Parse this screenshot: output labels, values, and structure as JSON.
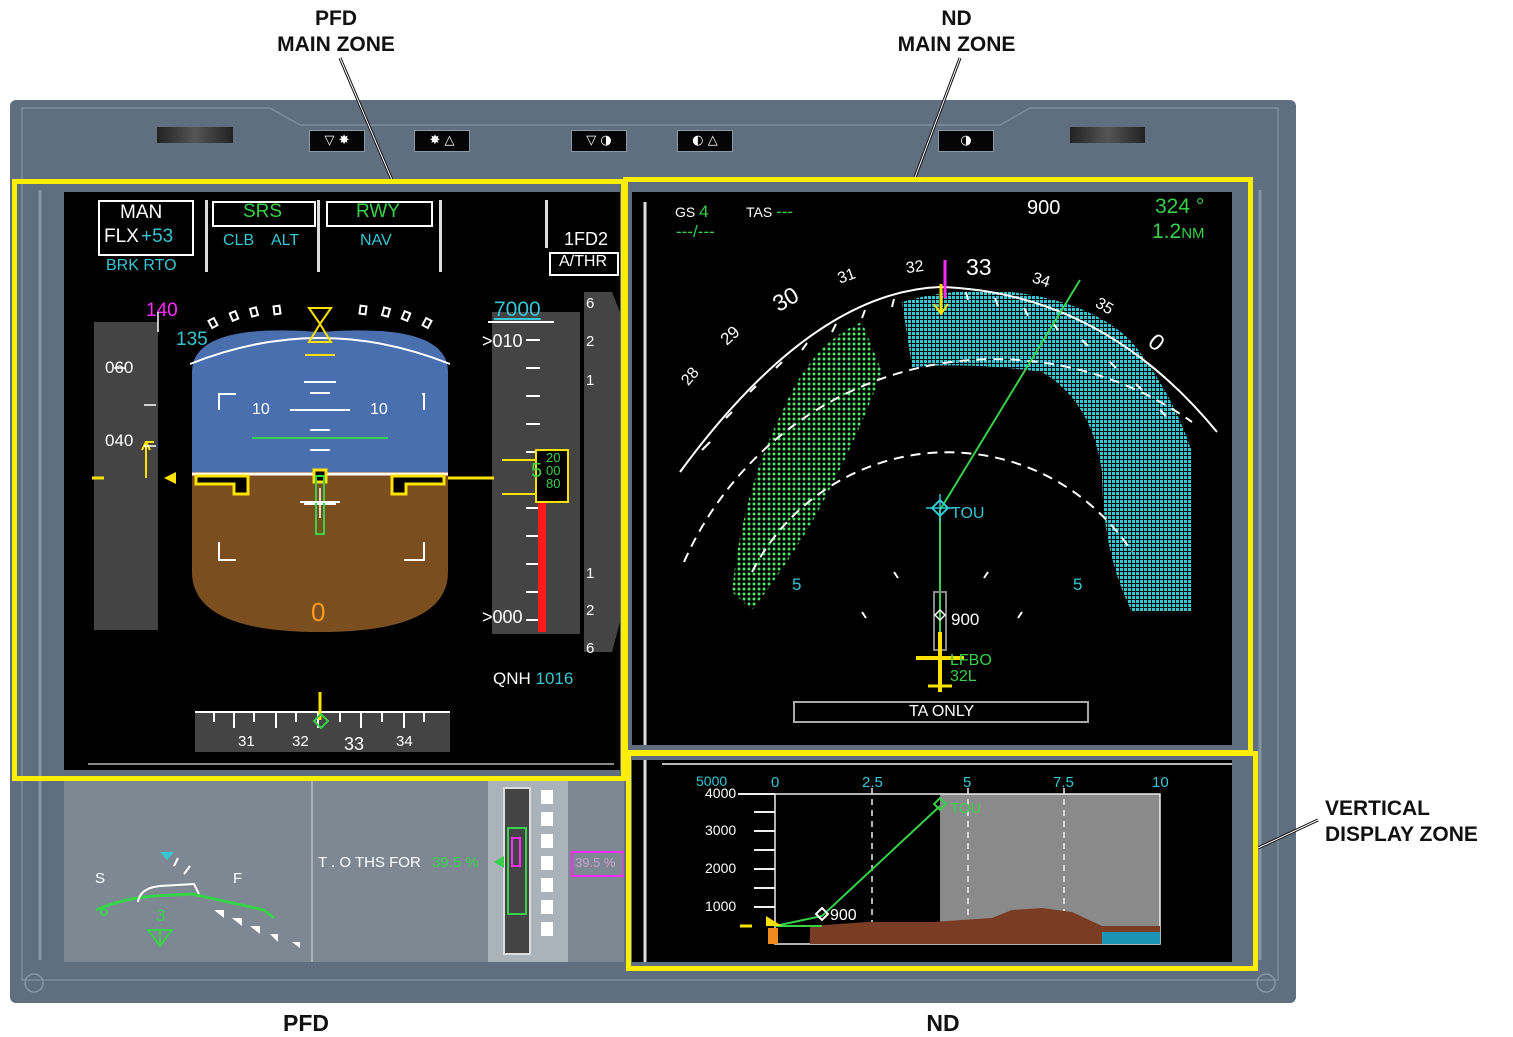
{
  "callouts": {
    "pfd_main": [
      "PFD",
      "MAIN ZONE"
    ],
    "nd_main": [
      "ND",
      "MAIN ZONE"
    ],
    "vertical": [
      "VERTICAL",
      "DISPLAY ZONE"
    ],
    "pfd": "PFD",
    "nd": "ND"
  },
  "bezel_buttons": [
    "▽ ✸",
    "✸ △",
    "▽ ◑",
    "◐ △",
    "◑"
  ],
  "pfd": {
    "fma": {
      "col1": [
        "MAN",
        "FLX",
        "+53",
        "BRK RTO"
      ],
      "col2": [
        "SRS",
        "CLB",
        "ALT"
      ],
      "col3": [
        "RWY",
        "NAV"
      ],
      "col5": [
        "1FD2",
        "A/THR"
      ]
    },
    "speed": {
      "vmax": "140",
      "v2": "135",
      "ticks": [
        "060",
        "040"
      ]
    },
    "attitude": {
      "pitch_left": "10",
      "pitch_right": "10",
      "speed_trend": "0"
    },
    "altitude": {
      "selected": "7000",
      "upper": "010",
      "current": "5",
      "roll": [
        "20",
        "00",
        "80"
      ],
      "lower": "000",
      "qnh_label": "QNH",
      "qnh_value": "1016"
    },
    "vs_scale": [
      "6",
      "2",
      "1",
      "1",
      "2",
      "6"
    ],
    "heading": [
      "31",
      "32",
      "33",
      "34"
    ]
  },
  "nd": {
    "gs_label": "GS",
    "gs_value": "4",
    "tas_label": "TAS",
    "tas_value": "---",
    "wind": "---/---",
    "range_top": "900",
    "heading_value": "324 °",
    "dist_value": "1.2",
    "dist_unit": "NM",
    "compass": [
      "28",
      "29",
      "30",
      "31",
      "32",
      "33",
      "34",
      "35",
      "0"
    ],
    "range_labels": [
      "5",
      "5"
    ],
    "waypoints": {
      "tou": "TOU",
      "alt": "900",
      "rwy1": "LFBO",
      "rwy2": "32L"
    },
    "tcas_mode": "TA ONLY"
  },
  "vd": {
    "alt_top": "5000",
    "alt_labels": [
      "4000",
      "3000",
      "2000",
      "1000"
    ],
    "dist_labels": [
      "0",
      "2.5",
      "5",
      "7.5",
      "10"
    ],
    "tou": "TOU",
    "alt_marker": "900"
  },
  "lower_ecam": {
    "slat": "S",
    "flap": "F",
    "config": "3",
    "ths_label": "T . O THS FOR",
    "ths_value": "39.5 %",
    "ths_box": "39.5 %"
  },
  "colors": {
    "bezel": "#5f6f80",
    "screen": "#000000",
    "green": "#37d14a",
    "cyan": "#36c6d6",
    "yellow_frame": "#ffee00",
    "sky": "#4a6fae",
    "ground": "#7a4e1f"
  }
}
